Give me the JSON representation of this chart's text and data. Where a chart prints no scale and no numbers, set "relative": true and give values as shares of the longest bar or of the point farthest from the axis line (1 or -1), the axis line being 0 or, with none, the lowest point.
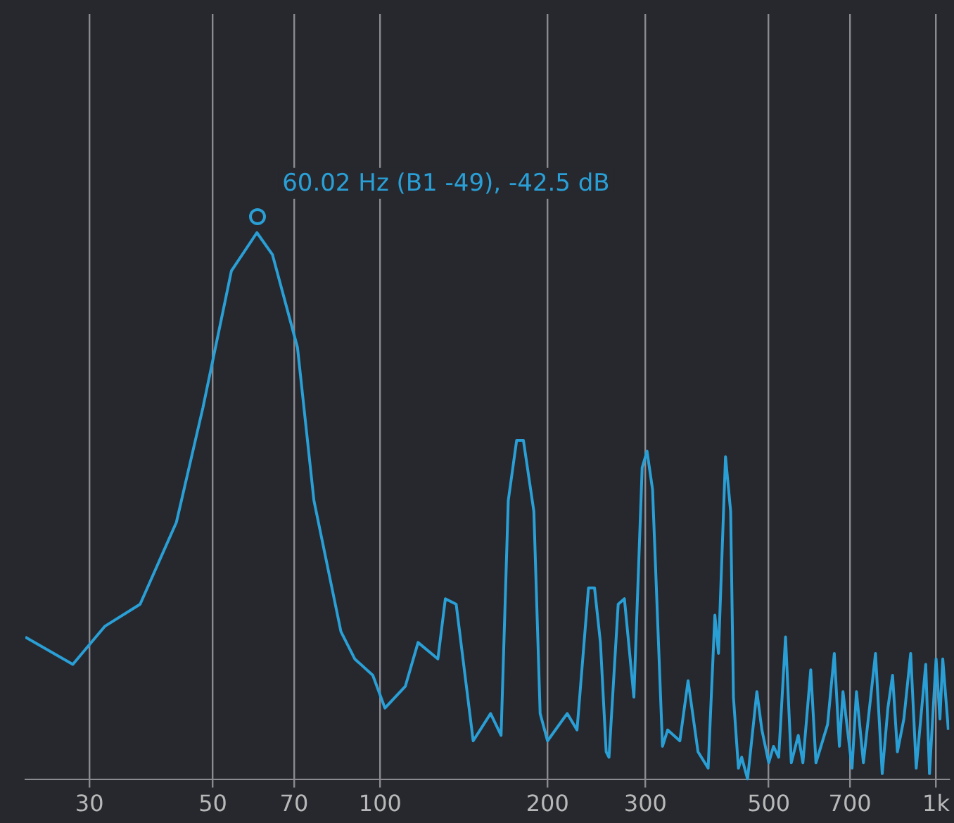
{
  "chart_data": {
    "type": "line",
    "relative": true,
    "log": "x",
    "grid": "x",
    "marker": "none",
    "line_style": "solid",
    "xlim": [
      23,
      1056
    ],
    "xticks": [
      30,
      50,
      70,
      100,
      200,
      300,
      500,
      700,
      {
        "value": 1000,
        "label": "1k"
      }
    ],
    "annotations": [
      {
        "text": "60.02 Hz (B1 -49), -42.5 dB",
        "x": 60.02,
        "y": 1
      }
    ],
    "series": [
      {
        "color": "#2a9fd6",
        "x": [
          23,
          28,
          32,
          37,
          43,
          48,
          54,
          60.02,
          64,
          71,
          76,
          85,
          90,
          97,
          102,
          111,
          117,
          127,
          131,
          137,
          147,
          158,
          165,
          170,
          176,
          181,
          189,
          194,
          200,
          217,
          226,
          237,
          243,
          249,
          255,
          258,
          268,
          275,
          286,
          296,
          302,
          309,
          322,
          329,
          346,
          358,
          373,
          389,
          400,
          406,
          418,
          427,
          432,
          441,
          447,
          458,
          476,
          486,
          500,
          510,
          521,
          536,
          549,
          565,
          576,
          595,
          608,
          638,
          656,
          670,
          680,
          706,
          719,
          740,
          757,
          778,
          800,
          819,
          835,
          852,
          875,
          900,
          921,
          958,
          973,
          1000,
          1016,
          1028,
          1052
        ],
        "values": [
          0.26,
          0.21,
          0.28,
          0.32,
          0.47,
          0.68,
          0.93,
          1,
          0.96,
          0.79,
          0.51,
          0.27,
          0.22,
          0.19,
          0.13,
          0.17,
          0.25,
          0.22,
          0.33,
          0.32,
          0.07,
          0.12,
          0.08,
          0.51,
          0.62,
          0.62,
          0.49,
          0.12,
          0.07,
          0.12,
          0.09,
          0.35,
          0.35,
          0.25,
          0.05,
          0.04,
          0.32,
          0.33,
          0.15,
          0.57,
          0.6,
          0.53,
          0.06,
          0.09,
          0.07,
          0.18,
          0.05,
          0.02,
          0.3,
          0.23,
          0.59,
          0.49,
          0.15,
          0.02,
          0.04,
          0,
          0.16,
          0.09,
          0.03,
          0.06,
          0.04,
          0.26,
          0.03,
          0.08,
          0.03,
          0.2,
          0.03,
          0.1,
          0.23,
          0.06,
          0.16,
          0.02,
          0.16,
          0.03,
          0.12,
          0.23,
          0.01,
          0.13,
          0.19,
          0.05,
          0.11,
          0.23,
          0.02,
          0.21,
          0.01,
          0.22,
          0.11,
          0.22,
          0.09
        ]
      }
    ]
  }
}
